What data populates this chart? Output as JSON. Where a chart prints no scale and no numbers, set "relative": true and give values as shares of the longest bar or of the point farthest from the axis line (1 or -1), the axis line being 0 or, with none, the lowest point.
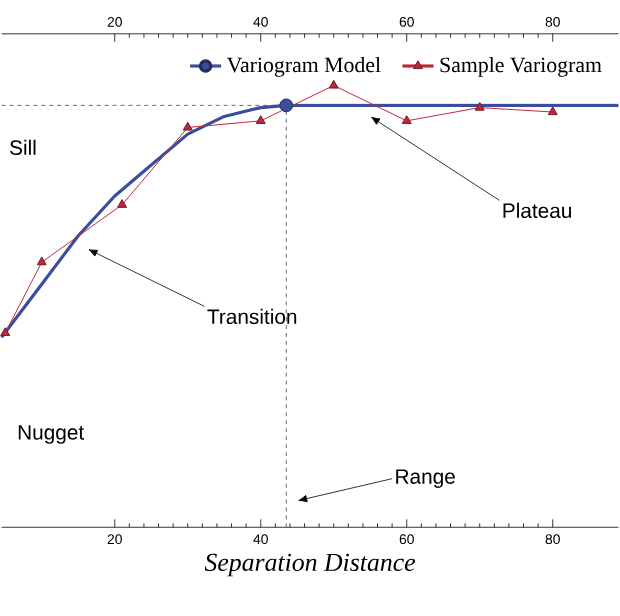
{
  "chart_data": {
    "type": "line",
    "relative": true,
    "xlabel": "Separation Distance",
    "xlim": [
      4.5,
      89
    ],
    "xticks": [
      20,
      40,
      60,
      80
    ],
    "x2lim": [
      4.5,
      89
    ],
    "x2ticks": [
      20,
      40,
      60,
      80
    ],
    "tick_labels": "x",
    "legend": "top right",
    "series": [
      {
        "name": "Variogram Model",
        "color": "#3b4d9b",
        "marker": "none",
        "x": [
          4.5,
          10,
          15,
          20,
          25,
          30,
          35,
          40,
          43.5,
          89
        ],
        "values": [
          0.43,
          0.55,
          0.66,
          0.75,
          0.82,
          0.89,
          0.93,
          0.95,
          0.955,
          0.955
        ]
      },
      {
        "type": "scatter",
        "color": "#3b4d9b",
        "marker": "circle",
        "x": [
          43.5
        ],
        "values": [
          0.955
        ]
      },
      {
        "name": "Sample Variogram",
        "color": "#c0283a",
        "marker": "triangle",
        "x": [
          5,
          10,
          21,
          30,
          40,
          50,
          60,
          70,
          80
        ],
        "values": [
          0.44,
          0.6,
          0.73,
          0.905,
          0.92,
          1.0,
          0.92,
          0.95,
          0.94
        ]
      }
    ],
    "ref_lines": [
      {
        "axis": "y",
        "value": 0.955,
        "line_style": "dashed",
        "color": "#334466"
      },
      {
        "axis": "x",
        "value": 43.5,
        "line_style": "dashed",
        "color": "#334466"
      }
    ],
    "annotations": [
      "Sill",
      {
        "text": "Plateau",
        "x": 55,
        "y": 0.93
      },
      "Transition",
      "Nugget",
      "Range"
    ]
  }
}
